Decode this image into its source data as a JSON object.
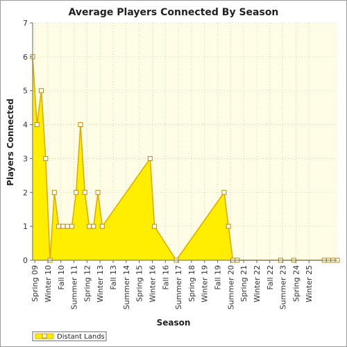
{
  "chart_data": {
    "type": "area",
    "title": "Average Players Connected By Season",
    "xlabel": "Season",
    "ylabel": "Players Connected",
    "ylim": [
      0,
      7
    ],
    "yticks": [
      0,
      1,
      2,
      3,
      4,
      5,
      6,
      7
    ],
    "grid": true,
    "legend_position": "bottom-left",
    "colors": {
      "fill": "#ffee00",
      "line": "#e0a800",
      "marker": "#ffffff",
      "plot_bg": "#fffde6",
      "grid": "#c8c8a8"
    },
    "x_tick_labels": [
      "Spring 09",
      "Winter 10",
      "Fall 10",
      "Summer 11",
      "Spring 12",
      "Winter 13",
      "Fall 13",
      "Summer 14",
      "Spring 15",
      "Winter 16",
      "Fall 16",
      "Summer 17",
      "Spring 18",
      "Winter 19",
      "Fall 19",
      "Summer 20",
      "Spring 21",
      "Winter 22",
      "Fall 22",
      "Summer 23",
      "Spring 24",
      "Winter 25"
    ],
    "series": [
      {
        "name": "Distant Lands",
        "points": [
          {
            "x": 0,
            "y": 6
          },
          {
            "x": 1,
            "y": 4
          },
          {
            "x": 2,
            "y": 5
          },
          {
            "x": 3,
            "y": 3
          },
          {
            "x": 4,
            "y": 0
          },
          {
            "x": 5,
            "y": 2
          },
          {
            "x": 6,
            "y": 1
          },
          {
            "x": 7,
            "y": 1
          },
          {
            "x": 8,
            "y": 1
          },
          {
            "x": 9,
            "y": 1
          },
          {
            "x": 10,
            "y": 2
          },
          {
            "x": 11,
            "y": 4
          },
          {
            "x": 12,
            "y": 2
          },
          {
            "x": 13,
            "y": 1
          },
          {
            "x": 14,
            "y": 1
          },
          {
            "x": 15,
            "y": 2
          },
          {
            "x": 16,
            "y": 1
          },
          {
            "x": 27,
            "y": 3
          },
          {
            "x": 28,
            "y": 1
          },
          {
            "x": 33,
            "y": 0
          },
          {
            "x": 44,
            "y": 2
          },
          {
            "x": 45,
            "y": 1
          },
          {
            "x": 46,
            "y": 0
          },
          {
            "x": 47,
            "y": 0
          },
          {
            "x": 57,
            "y": 0
          },
          {
            "x": 60,
            "y": 0
          },
          {
            "x": 67,
            "y": 0
          },
          {
            "x": 68,
            "y": 0
          },
          {
            "x": 69,
            "y": 0
          },
          {
            "x": 70,
            "y": 0
          }
        ]
      }
    ]
  }
}
